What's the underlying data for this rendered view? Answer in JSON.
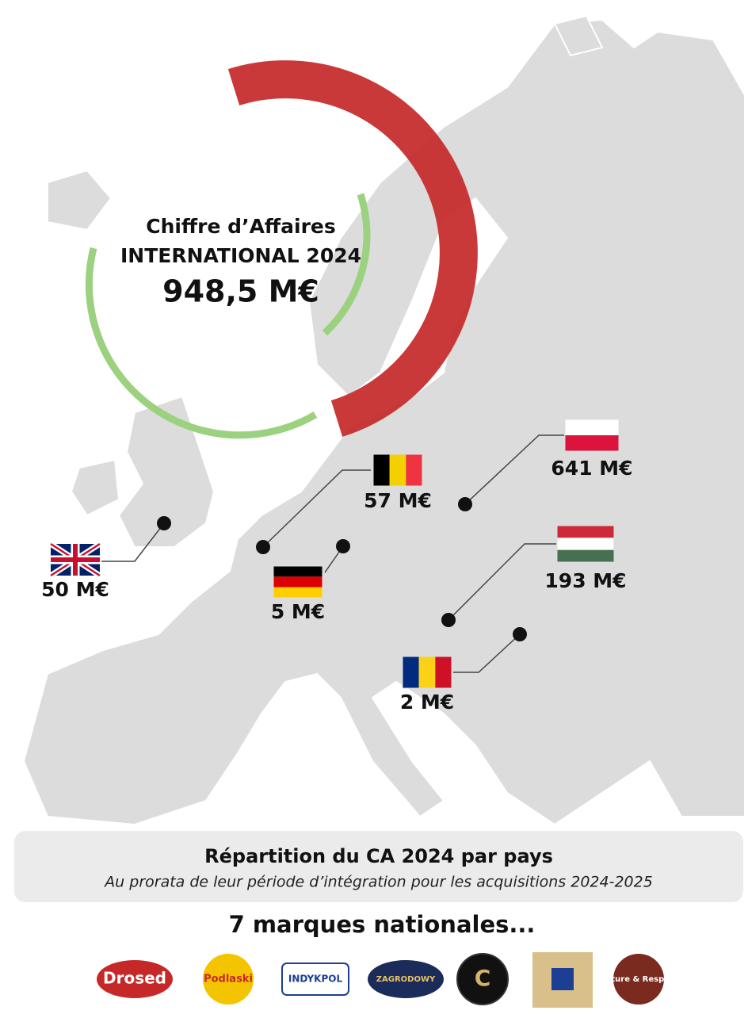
{
  "header": {
    "line1": "Chiffre d’Affaires",
    "line2": "INTERNATIONAL 2024",
    "total": "948,5 M€"
  },
  "countries": [
    "50 M€",
    "57 M€",
    "5 M€",
    "641 M€",
    "193 M€",
    "2 M€"
  ],
  "caption": {
    "title": "Répartition du CA 2024 par pays",
    "subtitle": "Au prorata de leur période d’intégration pour les acquisitions 2024-2025"
  },
  "brands": {
    "title": "7 marques nationales...",
    "logos": [
      "Drosed",
      "Podlaski",
      "INDYKPOL",
      "ZAGRODOWY",
      "C",
      "Nature & Respect"
    ]
  }
}
